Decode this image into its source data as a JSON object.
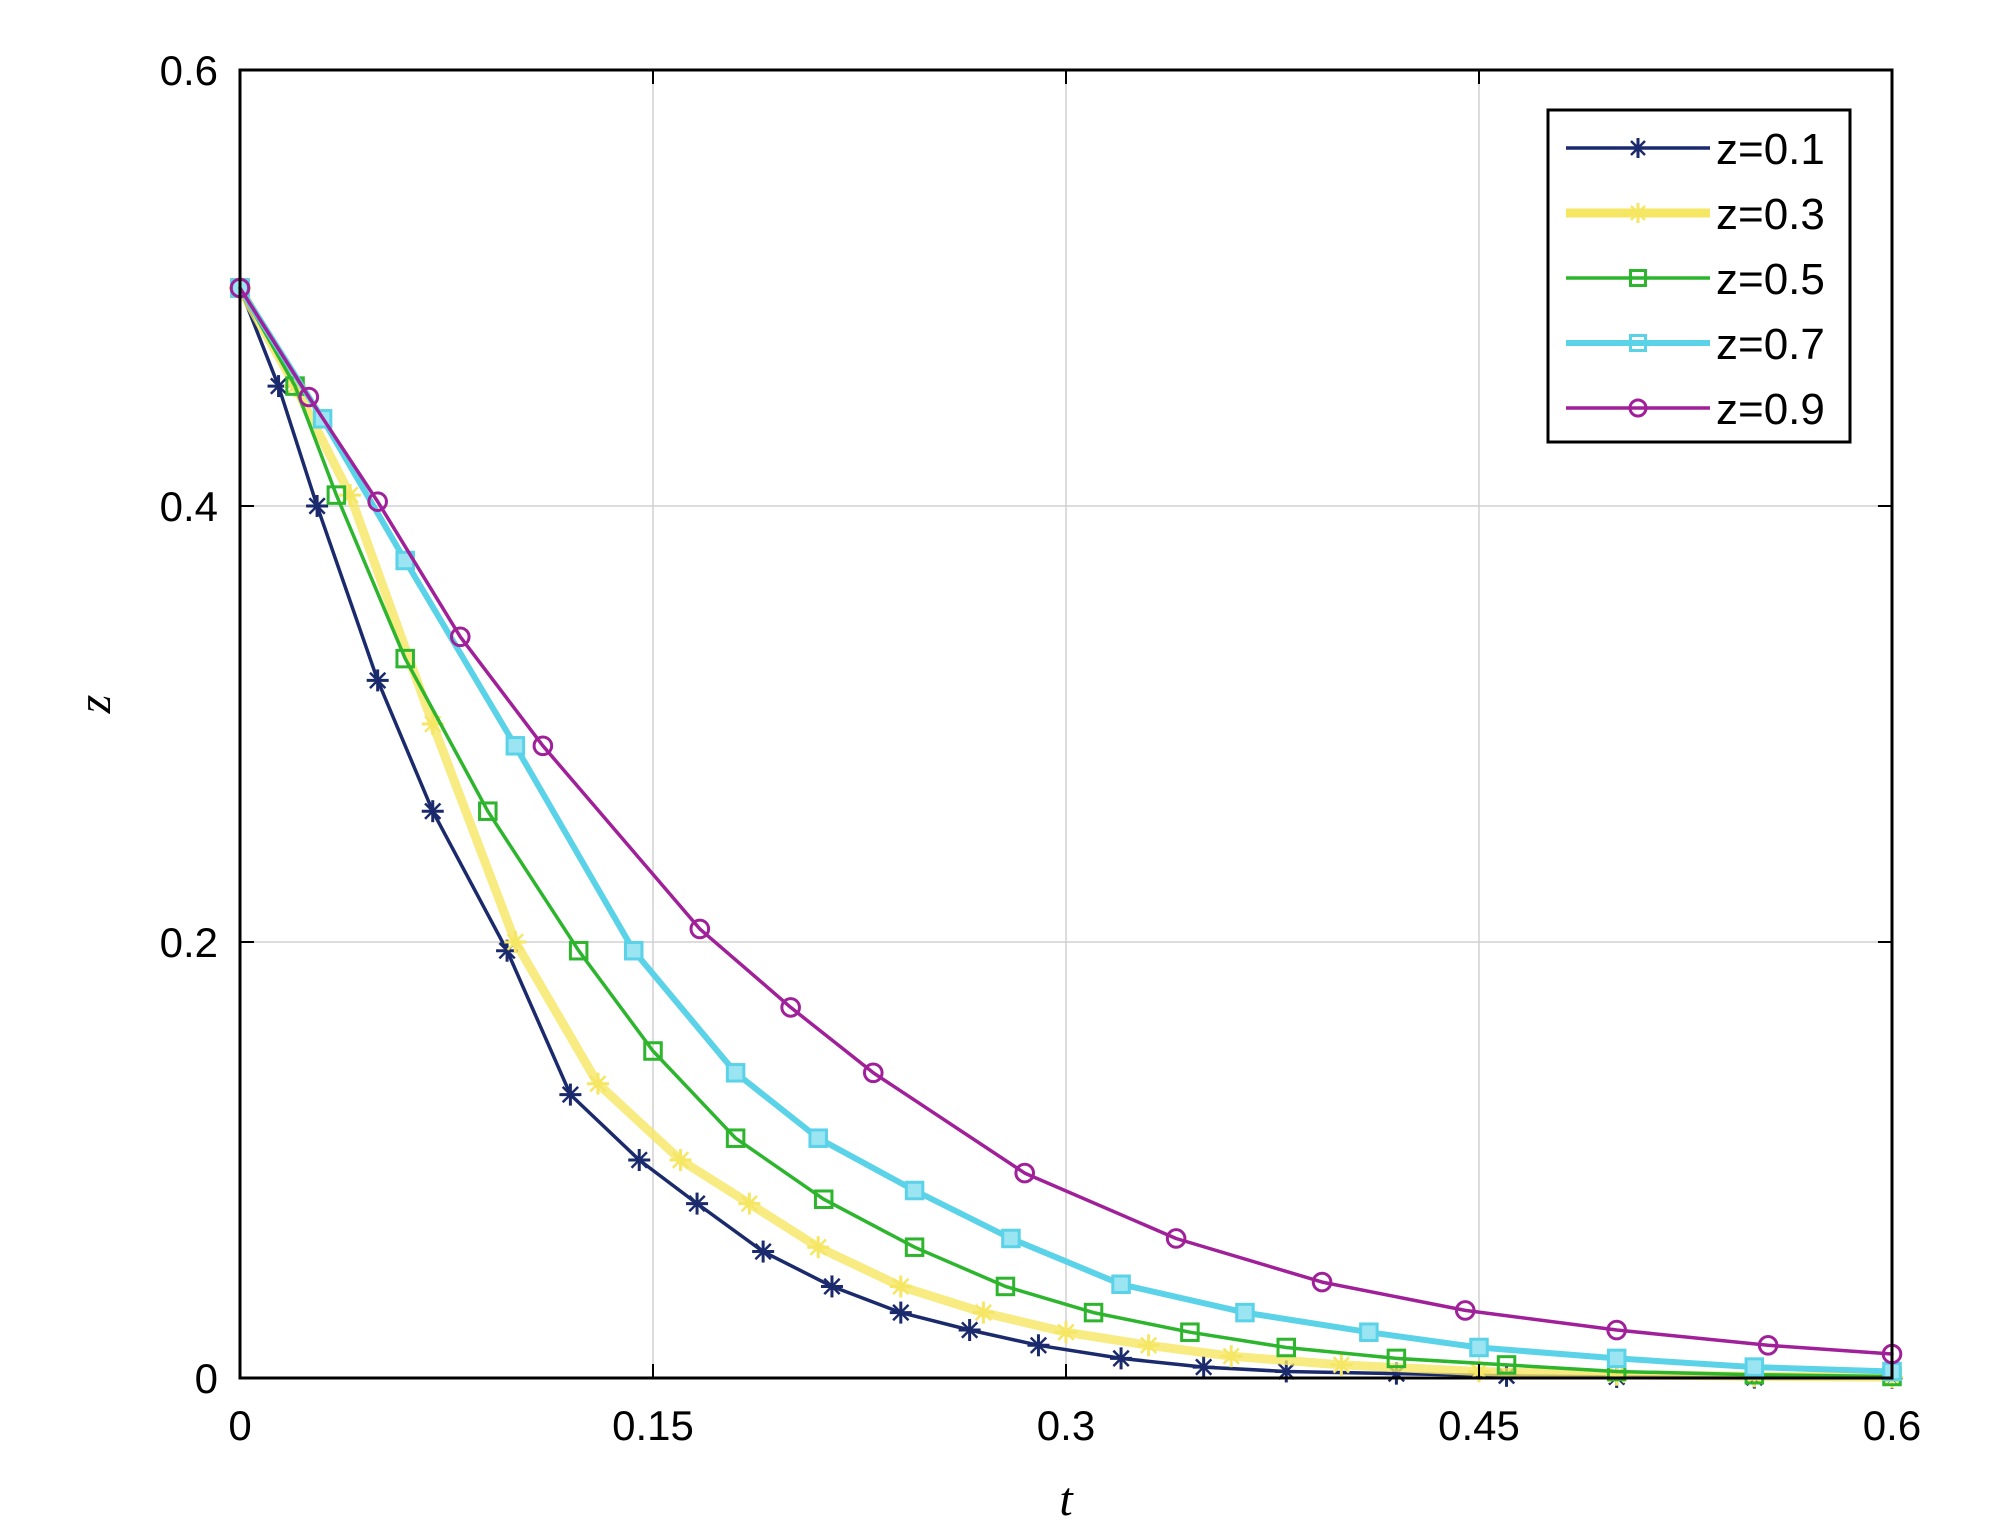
{
  "chart_data": {
    "type": "line",
    "title": "",
    "xlabel": "t",
    "ylabel": "z",
    "xlim": [
      0,
      0.6
    ],
    "ylim": [
      0,
      0.6
    ],
    "xticks": [
      "0",
      "0.15",
      "0.3",
      "0.45",
      "0.6"
    ],
    "yticks": [
      "0",
      "0.2",
      "0.4",
      "0.6"
    ],
    "grid": true,
    "legend_position": "top-right",
    "series": [
      {
        "name": "z=0.1",
        "color": "#1a2a6c",
        "marker": "star",
        "x": [
          0,
          0.014,
          0.028,
          0.05,
          0.07,
          0.097,
          0.12,
          0.145,
          0.166,
          0.19,
          0.215,
          0.24,
          0.265,
          0.29,
          0.32,
          0.35,
          0.38,
          0.42,
          0.46,
          0.5,
          0.55,
          0.6
        ],
        "y": [
          0.5,
          0.455,
          0.4,
          0.32,
          0.26,
          0.196,
          0.13,
          0.1,
          0.08,
          0.058,
          0.042,
          0.03,
          0.022,
          0.015,
          0.009,
          0.005,
          0.003,
          0.002,
          0.001,
          0.0005,
          0.0002,
          0.0001
        ]
      },
      {
        "name": "z=0.3",
        "color": "#f5e663",
        "marker": "star",
        "x": [
          0,
          0.02,
          0.04,
          0.07,
          0.1,
          0.13,
          0.16,
          0.185,
          0.21,
          0.24,
          0.27,
          0.3,
          0.33,
          0.36,
          0.4,
          0.45,
          0.5,
          0.55,
          0.6
        ],
        "y": [
          0.5,
          0.455,
          0.405,
          0.3,
          0.2,
          0.135,
          0.1,
          0.08,
          0.06,
          0.042,
          0.03,
          0.021,
          0.015,
          0.01,
          0.006,
          0.003,
          0.0015,
          0.0008,
          0.0004
        ]
      },
      {
        "name": "z=0.5",
        "color": "#2db52d",
        "marker": "square",
        "x": [
          0,
          0.02,
          0.035,
          0.06,
          0.09,
          0.123,
          0.15,
          0.18,
          0.212,
          0.245,
          0.278,
          0.31,
          0.345,
          0.38,
          0.42,
          0.46,
          0.5,
          0.55,
          0.6
        ],
        "y": [
          0.5,
          0.455,
          0.405,
          0.33,
          0.26,
          0.196,
          0.15,
          0.11,
          0.082,
          0.06,
          0.042,
          0.03,
          0.021,
          0.014,
          0.009,
          0.006,
          0.003,
          0.0015,
          0.0007
        ]
      },
      {
        "name": "z=0.7",
        "color": "#5ad2e8",
        "marker": "square",
        "x": [
          0,
          0.03,
          0.06,
          0.1,
          0.143,
          0.18,
          0.21,
          0.245,
          0.28,
          0.32,
          0.365,
          0.41,
          0.45,
          0.5,
          0.55,
          0.6
        ],
        "y": [
          0.5,
          0.44,
          0.375,
          0.29,
          0.196,
          0.14,
          0.11,
          0.086,
          0.064,
          0.043,
          0.03,
          0.021,
          0.014,
          0.009,
          0.005,
          0.003
        ]
      },
      {
        "name": "z=0.9",
        "color": "#a0209a",
        "marker": "circle",
        "x": [
          0,
          0.025,
          0.05,
          0.08,
          0.11,
          0.167,
          0.2,
          0.23,
          0.285,
          0.34,
          0.393,
          0.445,
          0.5,
          0.555,
          0.6
        ],
        "y": [
          0.5,
          0.45,
          0.402,
          0.34,
          0.29,
          0.206,
          0.17,
          0.14,
          0.094,
          0.064,
          0.044,
          0.031,
          0.022,
          0.015,
          0.011
        ]
      }
    ]
  }
}
